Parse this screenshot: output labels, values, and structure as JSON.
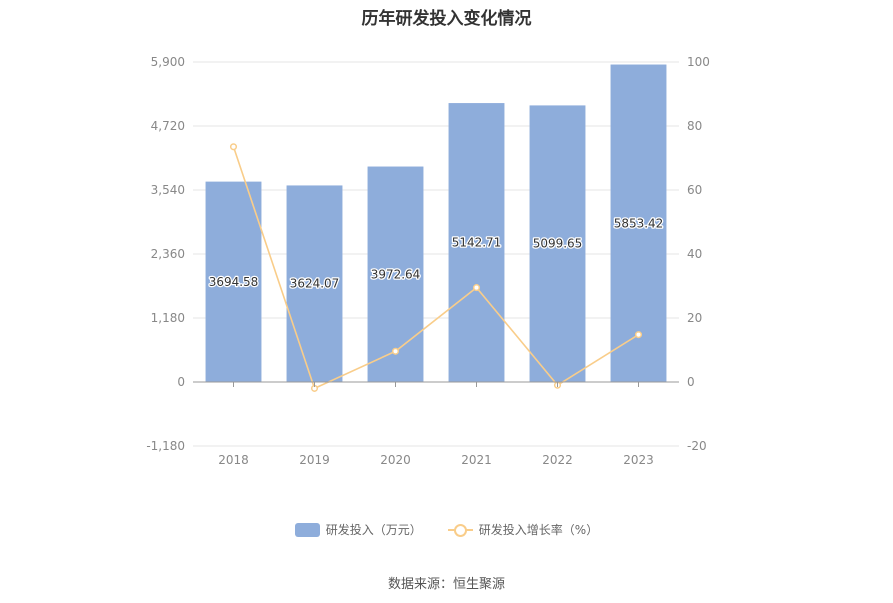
{
  "title": "历年研发投入变化情况",
  "source": "数据来源：恒生聚源",
  "colors": {
    "bar": "#8eaddb",
    "line": "#f9cd8a",
    "grid": "#e6e6e6",
    "axis": "#999999"
  },
  "chart_data": {
    "type": "bar",
    "title": "历年研发投入变化情况",
    "categories": [
      "2018",
      "2019",
      "2020",
      "2021",
      "2022",
      "2023"
    ],
    "series": [
      {
        "name": "研发投入（万元）",
        "type": "bar",
        "axis": "left",
        "values": [
          3694.58,
          3624.07,
          3972.64,
          5142.71,
          5099.65,
          5853.42
        ]
      },
      {
        "name": "研发投入增长率（%）",
        "type": "line",
        "axis": "right",
        "values": [
          73.5,
          -2.0,
          9.6,
          29.5,
          -1.0,
          14.8
        ]
      }
    ],
    "y_left": {
      "ticks": [
        "-1,180",
        "0",
        "1,180",
        "2,360",
        "3,540",
        "4,720",
        "5,900"
      ],
      "range": [
        -1180,
        5900
      ]
    },
    "y_right": {
      "ticks": [
        "-20",
        "0",
        "20",
        "40",
        "60",
        "80",
        "100"
      ],
      "range": [
        -20,
        100
      ]
    },
    "legend_position": "bottom-center",
    "grid": true
  }
}
